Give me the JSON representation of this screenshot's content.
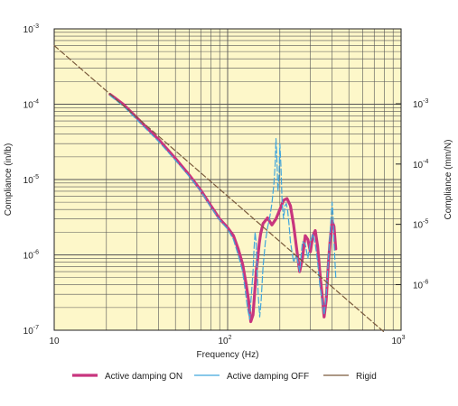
{
  "chart_data": {
    "type": "line",
    "xlabel": "Frequency (Hz)",
    "ylabel": "Compliance (in/lb)",
    "y2label": "Compliance (mm/N)",
    "x_scale": "log",
    "y_scale": "log",
    "xlim": [
      10,
      1000
    ],
    "ylim": [
      1e-07,
      0.001
    ],
    "y2lim": [
      1.75e-07,
      0.0175
    ],
    "x_ticks": [
      {
        "value": 10,
        "base": "10",
        "exp": ""
      },
      {
        "value": 100,
        "base": "10",
        "exp": "2"
      },
      {
        "value": 1000,
        "base": "10",
        "exp": "3"
      }
    ],
    "y_ticks": [
      {
        "value": 1e-07,
        "base": "10",
        "exp": "-7"
      },
      {
        "value": 1e-06,
        "base": "10",
        "exp": "-6"
      },
      {
        "value": 1e-05,
        "base": "10",
        "exp": "-5"
      },
      {
        "value": 0.0001,
        "base": "10",
        "exp": "-4"
      },
      {
        "value": 0.001,
        "base": "10",
        "exp": "-3"
      }
    ],
    "y2_ticks": [
      {
        "value": 1e-06,
        "base": "10",
        "exp": "-6"
      },
      {
        "value": 1e-05,
        "base": "10",
        "exp": "-5"
      },
      {
        "value": 0.0001,
        "base": "10",
        "exp": "-4"
      },
      {
        "value": 0.001,
        "base": "10",
        "exp": "-3"
      }
    ],
    "grid": true,
    "background_color": "#fdf7c9",
    "legend_position": "bottom",
    "series": [
      {
        "name": "Active damping ON",
        "color": "#c8357e",
        "style": "solid",
        "x": [
          21,
          25,
          30,
          40,
          50,
          60,
          70,
          80,
          90,
          100,
          108,
          115,
          122,
          128,
          132,
          136,
          140,
          143,
          146,
          149,
          152,
          155,
          160,
          170,
          180,
          190,
          200,
          210,
          220,
          230,
          240,
          250,
          260,
          270,
          280,
          290,
          300,
          310,
          320,
          330,
          340,
          350,
          360,
          370,
          380,
          390,
          400,
          410,
          420
        ],
        "y": [
          0.000135,
          0.0001,
          6.6e-05,
          3.4e-05,
          1.9e-05,
          1.15e-05,
          7.2e-06,
          4.5e-06,
          3e-06,
          2.3e-06,
          1.8e-06,
          1.2e-06,
          7.5e-07,
          4e-07,
          2.5e-07,
          1.3e-07,
          1.6e-07,
          3e-07,
          6e-07,
          9e-07,
          1.4e-06,
          1.9e-06,
          2.6e-06,
          3.1e-06,
          2.5e-06,
          3e-06,
          4e-06,
          5.3e-06,
          5.6e-06,
          4.5e-06,
          2.5e-06,
          1.2e-06,
          6e-07,
          9e-07,
          1.8e-06,
          1.6e-06,
          1.1e-06,
          1.8e-06,
          2.1e-06,
          1.3e-06,
          6e-07,
          3e-07,
          1.5e-07,
          2.5e-07,
          7e-07,
          1.6e-06,
          2.8e-06,
          2.4e-06,
          1.2e-06
        ]
      },
      {
        "name": "Active damping OFF",
        "color": "#42a6dc",
        "style": "dashed",
        "x": [
          21,
          25,
          30,
          40,
          50,
          60,
          70,
          80,
          90,
          100,
          108,
          115,
          122,
          126,
          130,
          134,
          137,
          140,
          142,
          144,
          146,
          148,
          150,
          153,
          156,
          160,
          165,
          170,
          175,
          180,
          185,
          188,
          190,
          192,
          195,
          198,
          200,
          203,
          206,
          210,
          214,
          218,
          222,
          226,
          230,
          240,
          250,
          260,
          270,
          280,
          290,
          300,
          310,
          320,
          330,
          340,
          350,
          360,
          370,
          380,
          390,
          400,
          405,
          410,
          420
        ],
        "y": [
          0.00013,
          9.5e-05,
          6.2e-05,
          3.2e-05,
          1.8e-05,
          1.1e-05,
          7e-06,
          4.3e-06,
          2.9e-06,
          2.2e-06,
          1.6e-06,
          1e-06,
          6e-07,
          3.5e-07,
          2e-07,
          1.4e-07,
          3e-07,
          6e-07,
          1.2e-06,
          2e-06,
          1.4e-06,
          6e-07,
          3e-07,
          1.5e-07,
          2.5e-07,
          7e-07,
          1.5e-06,
          2.3e-06,
          3.2e-06,
          4.8e-06,
          9e-06,
          1.6e-05,
          3.5e-05,
          2e-05,
          7e-06,
          1.2e-05,
          3e-05,
          1.5e-05,
          5e-06,
          3e-06,
          4.5e-06,
          4.8e-06,
          3.8e-06,
          2.5e-06,
          1.5e-06,
          8e-07,
          1e-06,
          6e-07,
          1.5e-06,
          1.4e-06,
          9e-07,
          1.5e-06,
          1.9e-06,
          1.4e-06,
          8e-07,
          4e-07,
          2.5e-07,
          1.6e-07,
          3e-07,
          8e-07,
          2e-06,
          5e-06,
          3.5e-06,
          1.5e-06,
          5e-07
        ]
      },
      {
        "name": "Rigid",
        "color": "#7a5a3c",
        "style": "dashed",
        "x": [
          10,
          800
        ],
        "y": [
          0.0006,
          9.4e-08
        ]
      }
    ]
  }
}
